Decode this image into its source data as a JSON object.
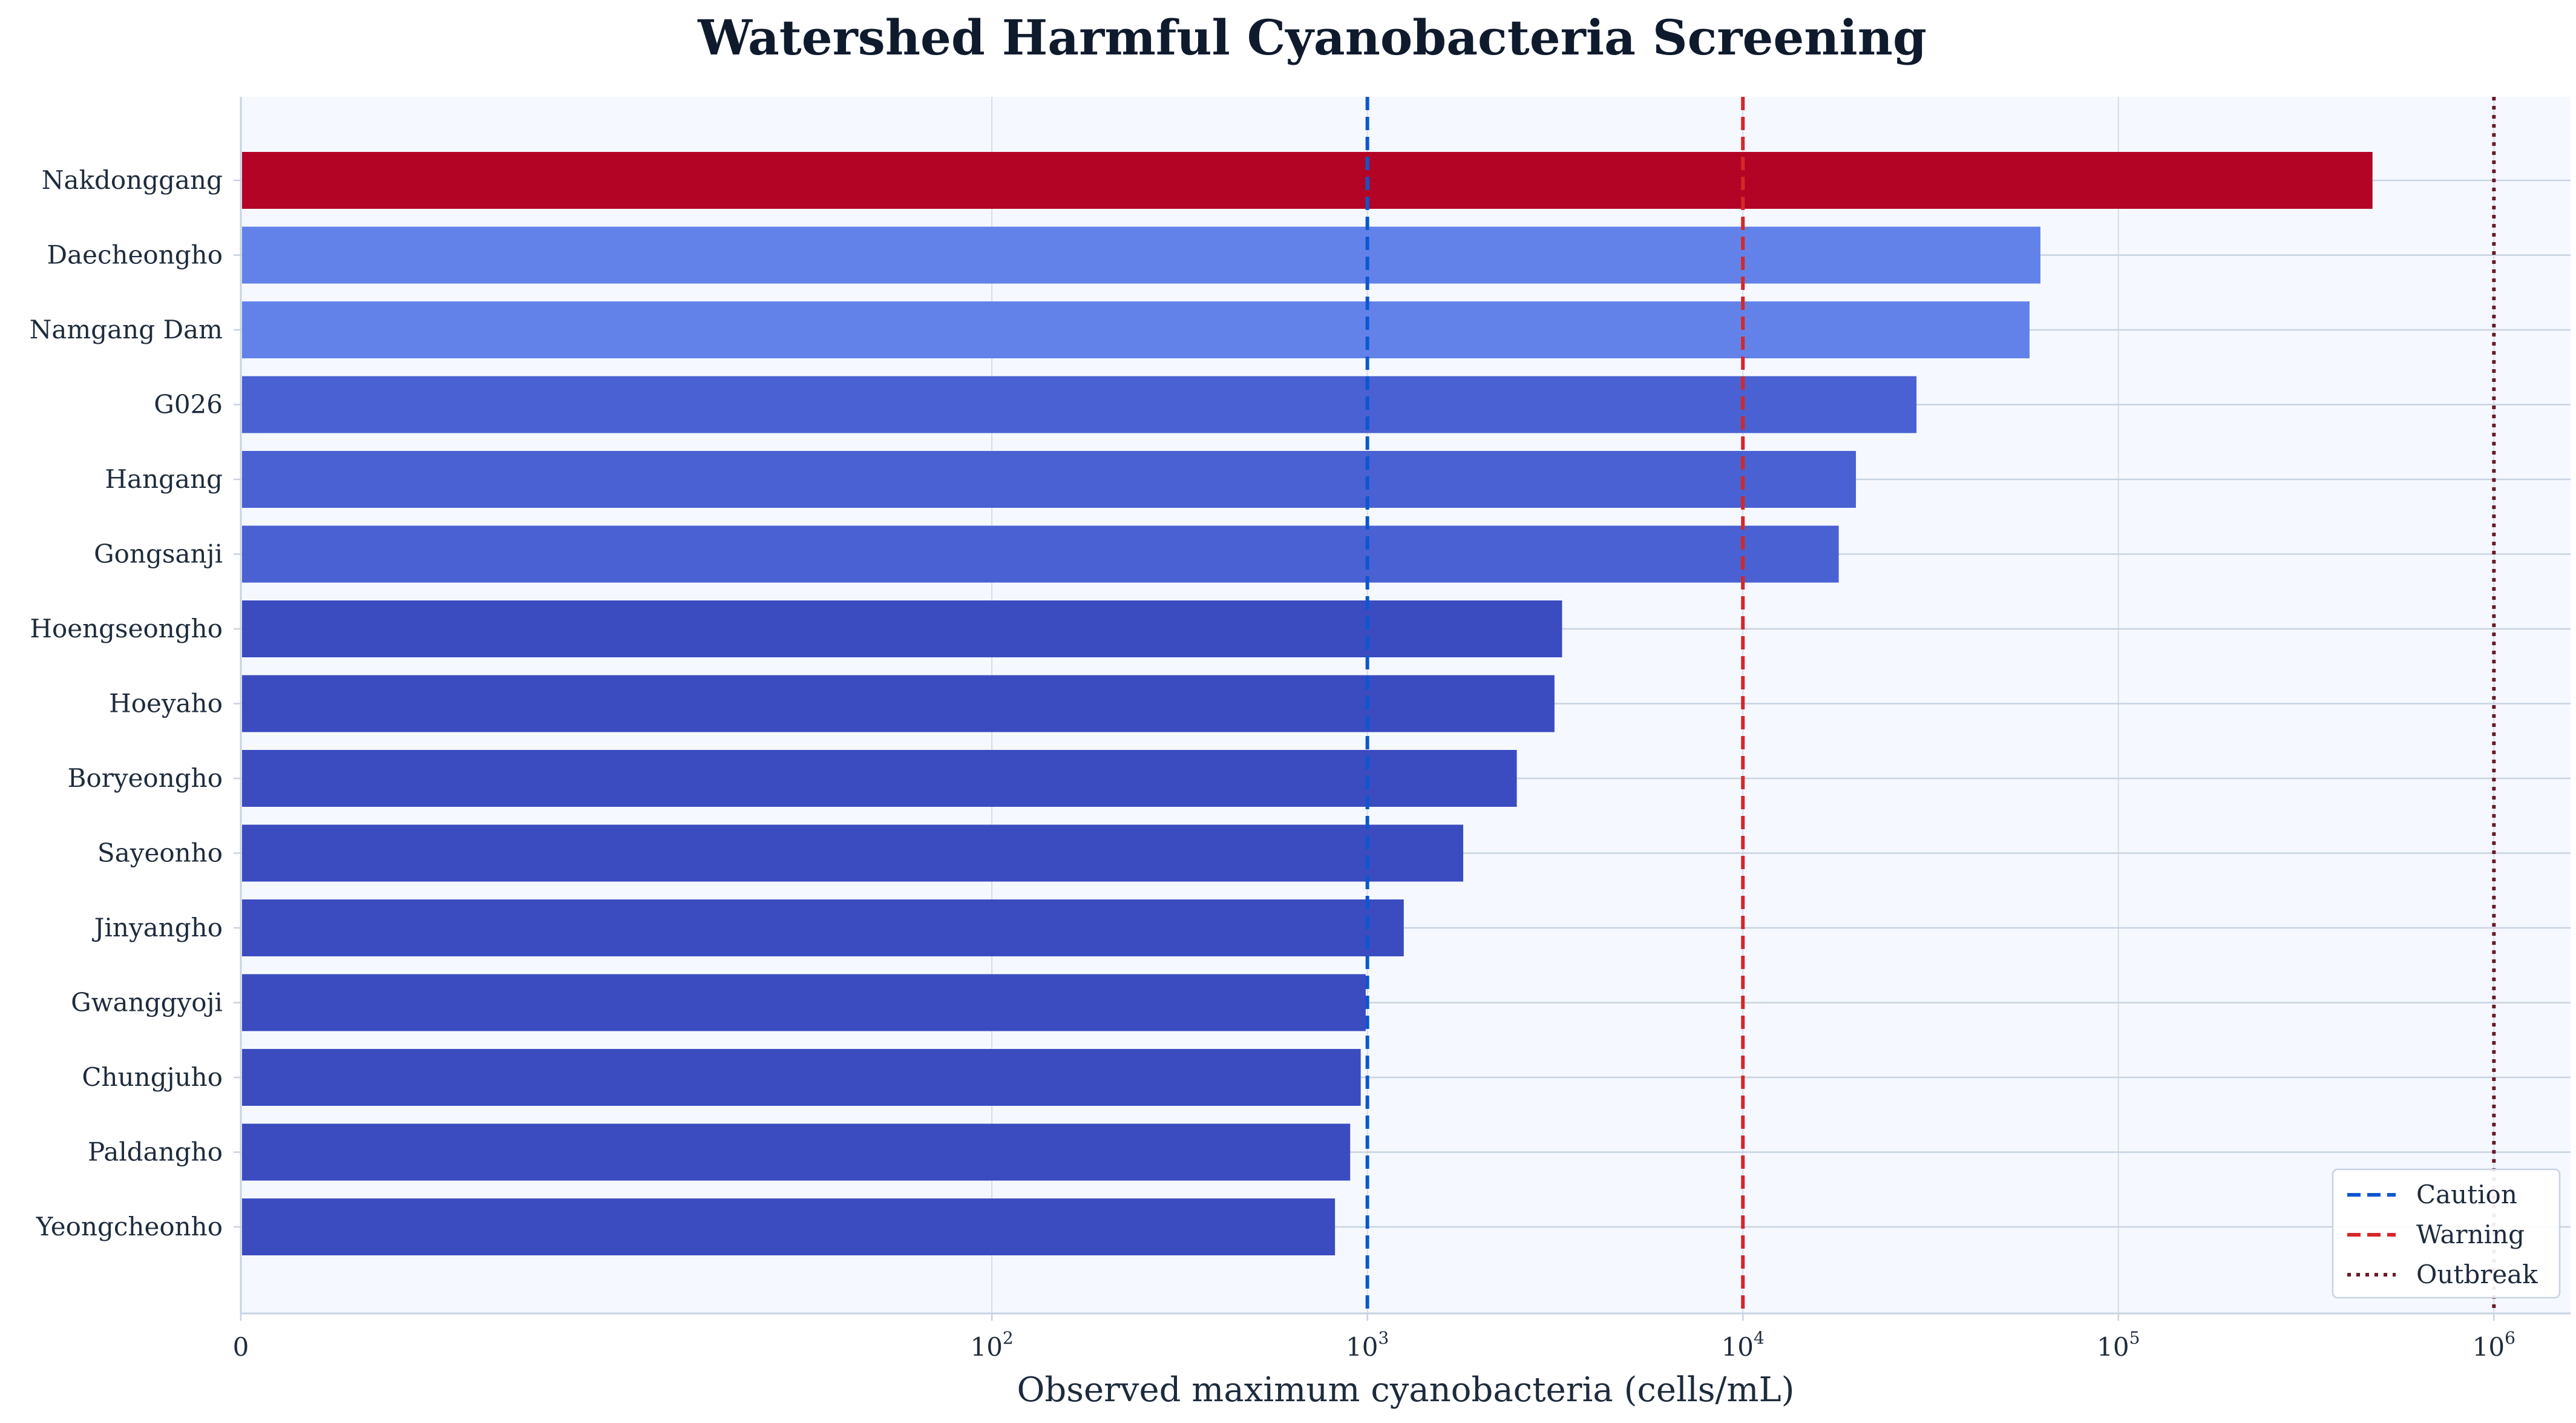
{
  "chart_data": {
    "type": "bar",
    "orientation": "horizontal",
    "title": "Watershed Harmful Cyanobacteria Screening",
    "xlabel": "Observed maximum cyanobacteria (cells/mL)",
    "ylabel": "",
    "x_scale": "symlog",
    "x_ticks": [
      {
        "value": 0,
        "label": "0"
      },
      {
        "value": 100,
        "label": "10",
        "exp": "2"
      },
      {
        "value": 1000,
        "label": "10",
        "exp": "3"
      },
      {
        "value": 10000,
        "label": "10",
        "exp": "4"
      },
      {
        "value": 100000,
        "label": "10",
        "exp": "5"
      },
      {
        "value": 1000000,
        "label": "10",
        "exp": "6"
      }
    ],
    "xlim": [
      0,
      1600000
    ],
    "grid": true,
    "legend_position": "bottom-right",
    "categories": [
      "Nakdonggang",
      "Daecheongho",
      "Namgang Dam",
      "G026",
      "Hangang",
      "Gongsanji",
      "Hoengseongho",
      "Hoeyaho",
      "Boryeongho",
      "Sayeonho",
      "Jinyangho",
      "Gwanggyoji",
      "Chungjuho",
      "Paldangho",
      "Yeongcheonho"
    ],
    "values": [
      475000,
      62000,
      58000,
      29000,
      20000,
      18000,
      3300,
      3150,
      2500,
      1800,
      1250,
      990,
      960,
      900,
      820
    ],
    "bar_colors": [
      "#b40426",
      "#6282ea",
      "#6282ea",
      "#4961d2",
      "#4961d2",
      "#4961d2",
      "#3b4cc0",
      "#3b4cc0",
      "#3b4cc0",
      "#3b4cc0",
      "#3b4cc0",
      "#3b4cc0",
      "#3b4cc0",
      "#3b4cc0",
      "#3b4cc0"
    ],
    "thresholds": [
      {
        "name": "Caution",
        "value": 1000,
        "color": "#0b57d0",
        "style": "dashed"
      },
      {
        "name": "Warning",
        "value": 10000,
        "color": "#d62728",
        "style": "dashed"
      },
      {
        "name": "Outbreak",
        "value": 1000000,
        "color": "#6b1a2a",
        "style": "dotted"
      }
    ],
    "colors": {
      "plot_background": "#f5f9ff",
      "grid": "#d5dde8",
      "axis": "#c8d2e0",
      "text": "#1e2b3c",
      "title": "#0f1b2d"
    }
  }
}
